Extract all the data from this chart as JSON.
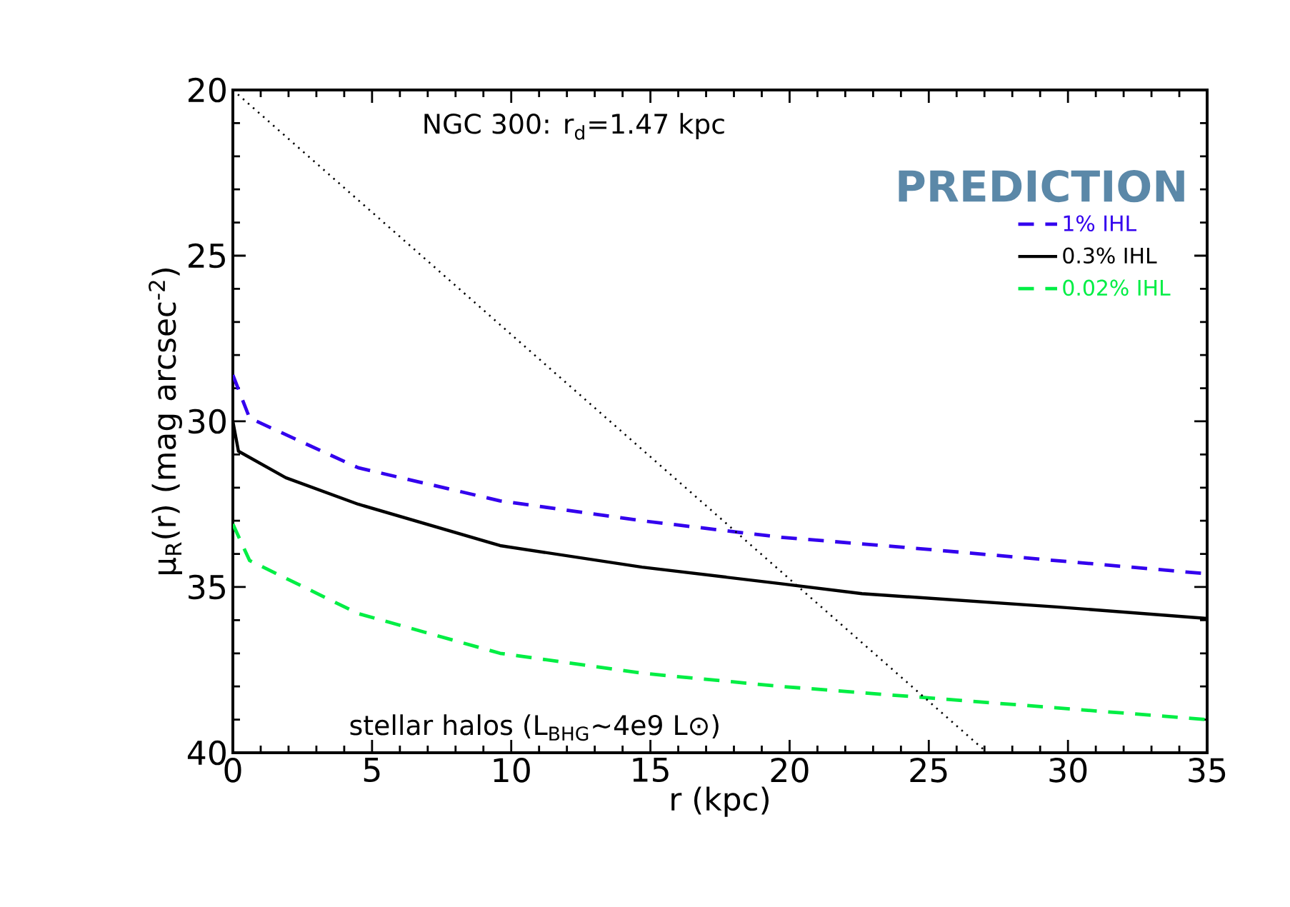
{
  "chart_data": {
    "type": "line",
    "xlabel": "r (kpc)",
    "ylabel": "μ$_{R}$(r) (mag arcsec$^{-2}$)",
    "xlim": [
      0,
      35
    ],
    "xticks": [
      0,
      5,
      10,
      15,
      20,
      25,
      30,
      35
    ],
    "ylim": [
      40,
      20
    ],
    "yticks": [
      20,
      25,
      30,
      35,
      40
    ],
    "legend": "top right",
    "annotations": [
      "NGC 300: r$_{d}$=1.47 kpc",
      "PREDICTION",
      "stellar halos (L$_{BHG}$~4e9 L⊙)"
    ],
    "series": [
      {
        "name": "1% IHL",
        "color": "#3300ee",
        "line_style": "dashed",
        "x": [
          0,
          0.6,
          4.5,
          9.6,
          14.7,
          19.7,
          24.1,
          35
        ],
        "values": [
          28.6,
          29.9,
          31.4,
          32.4,
          33.0,
          33.5,
          33.8,
          34.6
        ]
      },
      {
        "name": "0.3% IHL",
        "color": "#000000",
        "line_style": "solid",
        "x": [
          0,
          0.2,
          1.9,
          4.5,
          9.6,
          14.7,
          19.7,
          22.6,
          29.6,
          35
        ],
        "values": [
          30.0,
          30.9,
          31.7,
          32.5,
          33.75,
          34.4,
          34.9,
          35.2,
          35.6,
          35.95
        ]
      },
      {
        "name": "0.02% IHL",
        "color": "#00ee44",
        "line_style": "dashed",
        "x": [
          0,
          0.6,
          4.5,
          9.6,
          14.7,
          19.7,
          24.3,
          35
        ],
        "values": [
          33.1,
          34.2,
          35.8,
          37.0,
          37.6,
          38.0,
          38.3,
          39.0
        ]
      },
      {
        "color": "#000000",
        "line_style": "dotted",
        "x": [
          0,
          27.1
        ],
        "values": [
          20,
          40
        ]
      }
    ]
  }
}
